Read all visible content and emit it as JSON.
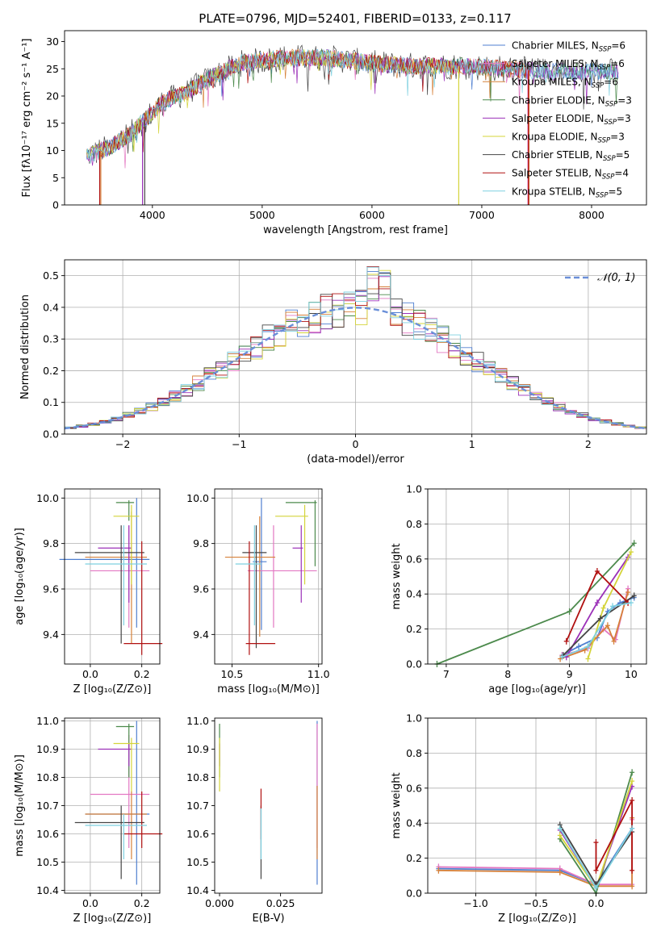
{
  "figure_title": "PLATE=0796, MJD=52401, FIBERID=0133, z=0.117",
  "legend": [
    {
      "label": "Chabrier MILES, N",
      "sub": "SSP",
      "tail": "=6",
      "color": "#4f7fd0"
    },
    {
      "label": "Salpeter MILES, N",
      "sub": "SSP",
      "tail": "=6",
      "color": "#e377c2"
    },
    {
      "label": "Kroupa MILES, N",
      "sub": "SSP",
      "tail": "=6",
      "color": "#d6813a"
    },
    {
      "label": "Chabrier ELODIE, N",
      "sub": "SSP",
      "tail": "=3",
      "color": "#4c8a4c"
    },
    {
      "label": "Salpeter ELODIE, N",
      "sub": "SSP",
      "tail": "=3",
      "color": "#9b30b8"
    },
    {
      "label": "Kroupa ELODIE, N",
      "sub": "SSP",
      "tail": "=3",
      "color": "#d4d43a"
    },
    {
      "label": "Chabrier STELIB, N",
      "sub": "SSP",
      "tail": "=5",
      "color": "#444444"
    },
    {
      "label": "Salpeter STELIB, N",
      "sub": "SSP",
      "tail": "=4",
      "color": "#b01010"
    },
    {
      "label": "Kroupa STELIB, N",
      "sub": "SSP",
      "tail": "=5",
      "color": "#7ed0e0"
    }
  ],
  "colors": {
    "axis": "#000000",
    "grid": "#b0b0b0",
    "normal_curve": "#6a8fd8"
  },
  "chart_data": [
    {
      "id": "spectrum",
      "type": "line",
      "xlabel": "wavelength [Angstrom, rest frame]",
      "ylabel": "Flux [fλ10⁻¹⁷ erg cm⁻² s⁻¹ A⁻¹]",
      "xlim": [
        3200,
        8500
      ],
      "ylim": [
        0,
        32
      ],
      "xticks": [
        4000,
        5000,
        6000,
        7000,
        8000
      ],
      "yticks": [
        0,
        5,
        10,
        15,
        20,
        25,
        30
      ],
      "grid": false,
      "legend_position": "top-right",
      "continuum": {
        "x": [
          3400,
          3600,
          3800,
          3950,
          4100,
          4300,
          4500,
          4800,
          5200,
          5600,
          6000,
          6400,
          6800,
          7200,
          7600,
          8000,
          8250
        ],
        "y": [
          9,
          10.5,
          13,
          16,
          19,
          20.5,
          23,
          26,
          27,
          27,
          26,
          25.5,
          25.5,
          25,
          24.5,
          24.5,
          24.5
        ]
      }
    },
    {
      "id": "residuals",
      "type": "histogram",
      "xlabel": "(data-model)/error",
      "ylabel": "Normed distribution",
      "xlim": [
        -2.5,
        2.5
      ],
      "ylim": [
        0,
        0.55
      ],
      "xticks": [
        -2,
        -1,
        0,
        1,
        2
      ],
      "yticks": [
        0.0,
        0.1,
        0.2,
        0.3,
        0.4,
        0.5
      ],
      "grid": true,
      "legend_position": "top-right",
      "reference_curve": {
        "label": "𝒩(0, 1)",
        "mean": 0,
        "sigma": 1
      },
      "bin_width": 0.1
    },
    {
      "id": "age_vs_Z",
      "type": "errorbar",
      "xlabel": "Z [log₁₀(Z/Z⊙)]",
      "ylabel": "age  [log₁₀(age/yr)]",
      "xlim": [
        -0.1,
        0.27
      ],
      "ylim": [
        9.27,
        10.04
      ],
      "xticks": [
        0.0,
        0.2
      ],
      "yticks": [
        9.4,
        9.6,
        9.8,
        10.0
      ],
      "grid": true,
      "points": [
        {
          "s": 0,
          "x": 0.18,
          "y": 9.73,
          "xe": [
            0.3,
            0.05
          ],
          "ye": [
            0.3,
            0.27
          ]
        },
        {
          "s": 1,
          "x": 0.15,
          "y": 9.68,
          "xe": [
            0.15,
            0.08
          ],
          "ye": [
            0.25,
            0.2
          ]
        },
        {
          "s": 2,
          "x": 0.16,
          "y": 9.74,
          "xe": [
            0.18,
            0.06
          ],
          "ye": [
            0.38,
            0.2
          ]
        },
        {
          "s": 3,
          "x": 0.15,
          "y": 9.98,
          "xe": [
            0.05,
            0.02
          ],
          "ye": [
            0.08,
            0.01
          ]
        },
        {
          "s": 4,
          "x": 0.15,
          "y": 9.78,
          "xe": [
            0.12,
            0.01
          ],
          "ye": [
            0.24,
            0.1
          ]
        },
        {
          "s": 5,
          "x": 0.16,
          "y": 9.92,
          "xe": [
            0.07,
            0.03
          ],
          "ye": [
            0.3,
            0.05
          ]
        },
        {
          "s": 6,
          "x": 0.12,
          "y": 9.76,
          "xe": [
            0.18,
            0.09
          ],
          "ye": [
            0.4,
            0.12
          ]
        },
        {
          "s": 7,
          "x": 0.2,
          "y": 9.36,
          "xe": [
            0.07,
            0.08
          ],
          "ye": [
            0.05,
            0.45
          ]
        },
        {
          "s": 8,
          "x": 0.13,
          "y": 9.71,
          "xe": [
            0.15,
            0.09
          ],
          "ye": [
            0.27,
            0.17
          ]
        }
      ]
    },
    {
      "id": "age_vs_mass",
      "type": "errorbar",
      "xlabel": "mass [log₁₀(M/M⊙)]",
      "ylabel": "",
      "xlim": [
        10.4,
        11.02
      ],
      "ylim": [
        9.27,
        10.04
      ],
      "xticks": [
        10.5,
        11.0
      ],
      "yticks": [
        9.4,
        9.6,
        9.8,
        10.0
      ],
      "grid": true,
      "points": [
        {
          "s": 0,
          "x": 10.67,
          "y": 9.72,
          "xe": [
            0.05,
            0.03
          ],
          "ye": [
            0.3,
            0.28
          ]
        },
        {
          "s": 1,
          "x": 10.74,
          "y": 9.68,
          "xe": [
            0.15,
            0.25
          ],
          "ye": [
            0.25,
            0.2
          ]
        },
        {
          "s": 2,
          "x": 10.66,
          "y": 9.74,
          "xe": [
            0.2,
            0.09
          ],
          "ye": [
            0.35,
            0.18
          ]
        },
        {
          "s": 3,
          "x": 10.98,
          "y": 9.98,
          "xe": [
            0.17,
            0.01
          ],
          "ye": [
            0.28,
            0.01
          ]
        },
        {
          "s": 4,
          "x": 10.9,
          "y": 9.78,
          "xe": [
            0.05,
            0.01
          ],
          "ye": [
            0.24,
            0.1
          ]
        },
        {
          "s": 5,
          "x": 10.92,
          "y": 9.92,
          "xe": [
            0.17,
            0.02
          ],
          "ye": [
            0.3,
            0.05
          ]
        },
        {
          "s": 6,
          "x": 10.64,
          "y": 9.76,
          "xe": [
            0.08,
            0.06
          ],
          "ye": [
            0.42,
            0.12
          ]
        },
        {
          "s": 7,
          "x": 10.6,
          "y": 9.36,
          "xe": [
            0.02,
            0.15
          ],
          "ye": [
            0.05,
            0.45
          ]
        },
        {
          "s": 8,
          "x": 10.63,
          "y": 9.71,
          "xe": [
            0.11,
            0.04
          ],
          "ye": [
            0.27,
            0.17
          ]
        }
      ]
    },
    {
      "id": "weight_vs_age",
      "type": "line",
      "xlabel": "age  [log₁₀(age/yr)]",
      "ylabel": "mass weight",
      "xlim": [
        6.7,
        10.25
      ],
      "ylim": [
        0,
        1.0
      ],
      "xticks": [
        7,
        8,
        9,
        10
      ],
      "yticks": [
        0.0,
        0.2,
        0.4,
        0.6,
        0.8,
        1.0
      ],
      "grid": true,
      "series": [
        {
          "s": 0,
          "x": [
            8.88,
            9.15,
            9.45,
            9.62,
            9.82,
            10.05
          ],
          "y": [
            0.05,
            0.1,
            0.15,
            0.3,
            0.35,
            0.38
          ]
        },
        {
          "s": 1,
          "x": [
            8.88,
            9.3,
            9.55,
            9.75,
            9.95
          ],
          "y": [
            0.05,
            0.09,
            0.2,
            0.14,
            0.43
          ]
        },
        {
          "s": 2,
          "x": [
            8.85,
            9.25,
            9.62,
            9.72,
            9.95
          ],
          "y": [
            0.03,
            0.08,
            0.22,
            0.13,
            0.41
          ]
        },
        {
          "s": 3,
          "x": [
            6.85,
            9.0,
            10.05
          ],
          "y": [
            0.0,
            0.3,
            0.69
          ]
        },
        {
          "s": 4,
          "x": [
            8.95,
            9.45,
            9.95
          ],
          "y": [
            0.04,
            0.35,
            0.61
          ]
        },
        {
          "s": 5,
          "x": [
            9.3,
            9.55,
            10.0
          ],
          "y": [
            0.03,
            0.32,
            0.64
          ]
        },
        {
          "s": 6,
          "x": [
            8.9,
            9.5,
            10.05
          ],
          "y": [
            0.05,
            0.26,
            0.39
          ]
        },
        {
          "s": 7,
          "x": [
            8.95,
            9.45,
            9.95
          ],
          "y": [
            0.13,
            0.53,
            0.35
          ]
        },
        {
          "s": 8,
          "x": [
            8.88,
            9.3,
            9.7,
            10.0
          ],
          "y": [
            0.04,
            0.1,
            0.33,
            0.35
          ]
        }
      ]
    },
    {
      "id": "mass_vs_Z",
      "type": "errorbar",
      "xlabel": "Z [log₁₀(Z/Z⊙)]",
      "ylabel": "mass [log₁₀(M/M⊙)]",
      "xlim": [
        -0.1,
        0.27
      ],
      "ylim": [
        10.39,
        11.01
      ],
      "xticks": [
        0.0,
        0.2
      ],
      "yticks": [
        10.4,
        10.5,
        10.6,
        10.7,
        10.8,
        10.9,
        11.0
      ],
      "grid": true,
      "points": [
        {
          "s": 0,
          "x": 0.18,
          "y": 10.67,
          "xe": [
            0.2,
            0.05
          ],
          "ye": [
            0.25,
            0.33
          ]
        },
        {
          "s": 1,
          "x": 0.15,
          "y": 10.74,
          "xe": [
            0.15,
            0.08
          ],
          "ye": [
            0.19,
            0.21
          ]
        },
        {
          "s": 2,
          "x": 0.16,
          "y": 10.67,
          "xe": [
            0.18,
            0.06
          ],
          "ye": [
            0.16,
            0.08
          ]
        },
        {
          "s": 3,
          "x": 0.15,
          "y": 10.98,
          "xe": [
            0.05,
            0.02
          ],
          "ye": [
            0.18,
            0.01
          ]
        },
        {
          "s": 4,
          "x": 0.15,
          "y": 10.9,
          "xe": [
            0.12,
            0.01
          ],
          "ye": [
            0.06,
            0.02
          ]
        },
        {
          "s": 5,
          "x": 0.16,
          "y": 10.92,
          "xe": [
            0.07,
            0.03
          ],
          "ye": [
            0.17,
            0.02
          ]
        },
        {
          "s": 6,
          "x": 0.12,
          "y": 10.64,
          "xe": [
            0.18,
            0.09
          ],
          "ye": [
            0.2,
            0.06
          ]
        },
        {
          "s": 7,
          "x": 0.2,
          "y": 10.6,
          "xe": [
            0.07,
            0.08
          ],
          "ye": [
            0.05,
            0.15
          ]
        },
        {
          "s": 8,
          "x": 0.13,
          "y": 10.63,
          "xe": [
            0.15,
            0.09
          ],
          "ye": [
            0.12,
            0.04
          ]
        }
      ]
    },
    {
      "id": "mass_vs_EBV",
      "type": "errorbar",
      "xlabel": "E(B-V)",
      "ylabel": "",
      "xlim": [
        -0.002,
        0.042
      ],
      "ylim": [
        10.39,
        11.01
      ],
      "xticks": [
        0.0,
        0.025
      ],
      "yticks": [
        10.4,
        10.5,
        10.6,
        10.7,
        10.8,
        10.9,
        11.0
      ],
      "grid": false,
      "points": [
        {
          "s": 0,
          "x": 0.04,
          "y": 10.67,
          "xe": [
            0,
            0
          ],
          "ye": [
            0.25,
            0.33
          ]
        },
        {
          "s": 1,
          "x": 0.04,
          "y": 10.74,
          "xe": [
            0,
            0
          ],
          "ye": [
            0.19,
            0.25
          ]
        },
        {
          "s": 2,
          "x": 0.04,
          "y": 10.67,
          "xe": [
            0,
            0
          ],
          "ye": [
            0.16,
            0.1
          ]
        },
        {
          "s": 3,
          "x": 0.0,
          "y": 10.98,
          "xe": [
            0,
            0
          ],
          "ye": [
            0.18,
            0.01
          ]
        },
        {
          "s": 4,
          "x": 0.0,
          "y": 10.9,
          "xe": [
            0,
            0
          ],
          "ye": [
            0.06,
            0.02
          ]
        },
        {
          "s": 5,
          "x": 0.0,
          "y": 10.92,
          "xe": [
            0,
            0
          ],
          "ye": [
            0.17,
            0.02
          ]
        },
        {
          "s": 6,
          "x": 0.017,
          "y": 10.64,
          "xe": [
            0,
            0
          ],
          "ye": [
            0.2,
            0.06
          ]
        },
        {
          "s": 7,
          "x": 0.017,
          "y": 10.68,
          "xe": [
            0,
            0
          ],
          "ye": [
            0.1,
            0.08
          ]
        },
        {
          "s": 8,
          "x": 0.017,
          "y": 10.63,
          "xe": [
            0,
            0
          ],
          "ye": [
            0.12,
            0.06
          ]
        }
      ]
    },
    {
      "id": "weight_vs_Z",
      "type": "line",
      "xlabel": "Z [log₁₀(Z/Z⊙)]",
      "ylabel": "mass weight",
      "xlim": [
        -1.4,
        0.42
      ],
      "ylim": [
        0,
        1.0
      ],
      "xticks": [
        -1.0,
        -0.5,
        0.0
      ],
      "yticks": [
        0.0,
        0.2,
        0.4,
        0.6,
        0.8,
        1.0
      ],
      "grid": true,
      "series": [
        {
          "s": 0,
          "x": [
            -1.31,
            -0.3,
            0.0,
            0.3
          ],
          "y": [
            0.14,
            0.13,
            0.05,
            0.37
          ]
        },
        {
          "s": 1,
          "x": [
            -1.31,
            -0.3,
            0.0,
            0.3,
            0.3
          ],
          "y": [
            0.15,
            0.14,
            0.05,
            0.05,
            0.42
          ]
        },
        {
          "s": 2,
          "x": [
            -1.31,
            -0.3,
            0.0,
            0.3,
            0.3
          ],
          "y": [
            0.13,
            0.12,
            0.04,
            0.04,
            0.43
          ]
        },
        {
          "s": 3,
          "x": [
            -0.3,
            0.0,
            0.3
          ],
          "y": [
            0.31,
            0.0,
            0.69
          ]
        },
        {
          "s": 4,
          "x": [
            -0.3,
            0.0,
            0.3
          ],
          "y": [
            0.36,
            0.03,
            0.61
          ]
        },
        {
          "s": 5,
          "x": [
            -0.3,
            0.0,
            0.3
          ],
          "y": [
            0.33,
            0.03,
            0.64
          ]
        },
        {
          "s": 6,
          "x": [
            -0.3,
            0.0,
            0.3
          ],
          "y": [
            0.39,
            0.05,
            0.35
          ]
        },
        {
          "s": 7,
          "x": [
            0.0,
            0.0,
            0.3,
            0.3
          ],
          "y": [
            0.29,
            0.13,
            0.53,
            0.13
          ]
        },
        {
          "s": 8,
          "x": [
            -0.3,
            0.0,
            0.3
          ],
          "y": [
            0.37,
            0.03,
            0.37
          ]
        }
      ]
    }
  ]
}
